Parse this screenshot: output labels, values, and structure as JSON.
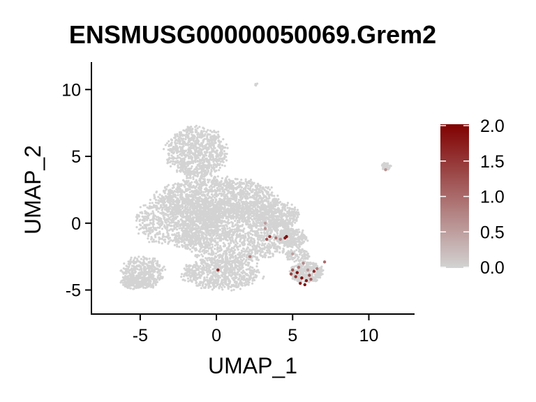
{
  "chart_data": {
    "type": "scatter",
    "title": "ENSMUSG00000050069.Grem2",
    "xlabel": "UMAP_1",
    "ylabel": "UMAP_2",
    "xlim": [
      -8.2,
      13
    ],
    "ylim": [
      -6.8,
      12
    ],
    "x_ticks": [
      -5,
      0,
      5,
      10
    ],
    "y_ticks": [
      -5,
      0,
      5,
      10
    ],
    "x_tick_labels": [
      "-5",
      "0",
      "5",
      "10"
    ],
    "y_tick_labels": [
      "-5",
      "0",
      "5",
      "10"
    ],
    "grid": false,
    "legend_position": "right",
    "color_scale": {
      "low_color": "#d3d3d3",
      "high_color": "#800000",
      "min": 0,
      "max": 2,
      "ticks": [
        2.0,
        1.5,
        1.0,
        0.5,
        0.0
      ],
      "tick_labels": [
        "2.0",
        "1.5",
        "1.0",
        "0.5",
        "0.0"
      ]
    },
    "background_clusters": [
      {
        "cx": -1.3,
        "cy": 5.3,
        "rx": 2.0,
        "ry": 1.9,
        "n": 900
      },
      {
        "cx": 0.0,
        "cy": 1.8,
        "rx": 4.0,
        "ry": 1.6,
        "n": 1400
      },
      {
        "cx": 1.2,
        "cy": -0.8,
        "rx": 3.8,
        "ry": 2.2,
        "n": 1600
      },
      {
        "cx": -2.5,
        "cy": 0.2,
        "rx": 2.8,
        "ry": 1.9,
        "n": 800
      },
      {
        "cx": 0.3,
        "cy": -3.8,
        "rx": 2.6,
        "ry": 1.2,
        "n": 700
      },
      {
        "cx": -4.8,
        "cy": -3.7,
        "rx": 1.4,
        "ry": 1.2,
        "n": 380
      },
      {
        "cx": -5.3,
        "cy": -4.4,
        "rx": 1.0,
        "ry": 0.5,
        "n": 200
      },
      {
        "cx": 4.0,
        "cy": 0.6,
        "rx": 1.4,
        "ry": 1.0,
        "n": 350
      },
      {
        "cx": 5.0,
        "cy": -1.1,
        "rx": 1.0,
        "ry": 0.7,
        "n": 220
      },
      {
        "cx": 5.9,
        "cy": -3.7,
        "rx": 1.1,
        "ry": 0.8,
        "n": 320
      },
      {
        "cx": 5.3,
        "cy": -2.4,
        "rx": 0.8,
        "ry": 0.5,
        "n": 100
      },
      {
        "cx": 11.1,
        "cy": 4.25,
        "rx": 0.35,
        "ry": 0.25,
        "n": 45
      },
      {
        "cx": 2.6,
        "cy": 10.4,
        "rx": 0.12,
        "ry": 0.12,
        "n": 5
      }
    ],
    "expressing_cells": [
      {
        "x": 5.3,
        "y": -3.7,
        "value": 1.9
      },
      {
        "x": 5.6,
        "y": -4.1,
        "value": 2.0
      },
      {
        "x": 5.9,
        "y": -4.3,
        "value": 1.8
      },
      {
        "x": 5.2,
        "y": -4.0,
        "value": 1.5
      },
      {
        "x": 5.5,
        "y": -4.5,
        "value": 1.7
      },
      {
        "x": 6.1,
        "y": -3.9,
        "value": 1.3
      },
      {
        "x": 6.4,
        "y": -3.6,
        "value": 1.6
      },
      {
        "x": 5.0,
        "y": -3.5,
        "value": 1.2
      },
      {
        "x": 5.8,
        "y": -4.6,
        "value": 1.9
      },
      {
        "x": 6.2,
        "y": -4.2,
        "value": 1.1
      },
      {
        "x": 4.9,
        "y": -3.8,
        "value": 1.4
      },
      {
        "x": 5.4,
        "y": -3.3,
        "value": 0.9
      },
      {
        "x": 6.6,
        "y": -3.4,
        "value": 0.8
      },
      {
        "x": 7.1,
        "y": -2.9,
        "value": 1.0
      },
      {
        "x": 5.7,
        "y": -3.0,
        "value": 0.7
      },
      {
        "x": 6.0,
        "y": -3.5,
        "value": 0.6
      },
      {
        "x": 4.6,
        "y": -1.0,
        "value": 2.0
      },
      {
        "x": 4.5,
        "y": -1.1,
        "value": 1.8
      },
      {
        "x": 3.5,
        "y": -1.0,
        "value": 1.5
      },
      {
        "x": 3.9,
        "y": -1.1,
        "value": 0.9
      },
      {
        "x": 4.2,
        "y": -1.2,
        "value": 0.7
      },
      {
        "x": 3.2,
        "y": -0.4,
        "value": 0.6
      },
      {
        "x": 3.3,
        "y": -1.2,
        "value": 1.2
      },
      {
        "x": 3.2,
        "y": 0.0,
        "value": 0.5
      },
      {
        "x": 2.2,
        "y": -2.5,
        "value": 0.8
      },
      {
        "x": 0.1,
        "y": -3.5,
        "value": 1.6
      },
      {
        "x": 11.1,
        "y": 4.0,
        "value": 0.6
      },
      {
        "x": 5.0,
        "y": -2.3,
        "value": 0.5
      }
    ]
  }
}
